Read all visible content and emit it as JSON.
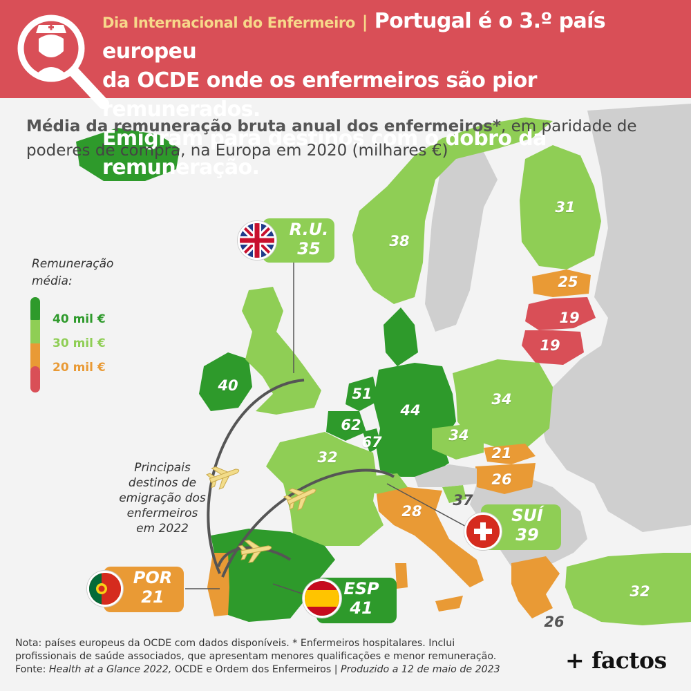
{
  "header": {
    "kicker": "Dia Internacional do Enfermeiro",
    "separator": "|",
    "headline_1": "Portugal é o 3.º país europeu",
    "headline_2": "da OCDE onde os enfermeiros são pior remunerados.",
    "headline_3": "Emigram para destinos com o dobro da remuneração.",
    "icon": "nurse-magnifier-icon"
  },
  "subtitle": {
    "bold": "Média da remuneração bruta anual dos enfermeiros*",
    "rest_1": ", em paridade de",
    "rest_2": "poderes de compra, na Europa em 2020 (milhares €)"
  },
  "legend": {
    "title_1": "Remuneração",
    "title_2": "média:",
    "items": [
      {
        "label": "40 mil €",
        "color": "#2e9a2b"
      },
      {
        "label": "30 mil €",
        "color": "#8fce55"
      },
      {
        "label": "20 mil €",
        "color": "#e99a35"
      },
      {
        "label": "",
        "color": "#d94f57"
      }
    ]
  },
  "countries": [
    {
      "name": "Iceland",
      "value": "",
      "color": "#2e9a2b"
    },
    {
      "name": "Norway",
      "value": "38",
      "color": "#8fce55"
    },
    {
      "name": "Finland",
      "value": "31",
      "color": "#8fce55"
    },
    {
      "name": "Estonia",
      "value": "25",
      "color": "#e99a35"
    },
    {
      "name": "Latvia",
      "value": "19",
      "color": "#d94f57"
    },
    {
      "name": "Lithuania",
      "value": "19",
      "color": "#d94f57"
    },
    {
      "name": "Ireland",
      "value": "40",
      "color": "#2e9a2b"
    },
    {
      "name": "United Kingdom",
      "value": "",
      "color": "#8fce55"
    },
    {
      "name": "Denmark",
      "value": "",
      "color": "#2e9a2b"
    },
    {
      "name": "Netherlands",
      "value": "51",
      "color": "#2e9a2b"
    },
    {
      "name": "Belgium",
      "value": "62",
      "color": "#2e9a2b"
    },
    {
      "name": "Luxembourg",
      "value": "67",
      "color": "#2e9a2b"
    },
    {
      "name": "Germany",
      "value": "44",
      "color": "#2e9a2b"
    },
    {
      "name": "Poland",
      "value": "34",
      "color": "#8fce55"
    },
    {
      "name": "Czechia",
      "value": "34",
      "color": "#8fce55"
    },
    {
      "name": "Slovakia",
      "value": "21",
      "color": "#e99a35"
    },
    {
      "name": "Hungary",
      "value": "26",
      "color": "#e99a35"
    },
    {
      "name": "Slovenia",
      "value": "37",
      "color": "#8fce55"
    },
    {
      "name": "France",
      "value": "32",
      "color": "#8fce55"
    },
    {
      "name": "Italy",
      "value": "28",
      "color": "#e99a35"
    },
    {
      "name": "Spain",
      "value": "",
      "color": "#2e9a2b"
    },
    {
      "name": "Portugal",
      "value": "",
      "color": "#e99a35"
    },
    {
      "name": "Greece",
      "value": "26",
      "color": "#e99a35"
    },
    {
      "name": "Turkey",
      "value": "32",
      "color": "#8fce55"
    },
    {
      "name": "Switzerland",
      "value": "",
      "color": "#8fce55"
    }
  ],
  "callouts": {
    "uk": {
      "code": "R.U.",
      "value": "35",
      "color": "#8fce55",
      "flag": "uk-flag-icon"
    },
    "por": {
      "code": "POR",
      "value": "21",
      "color": "#e99a35",
      "flag": "portugal-flag-icon"
    },
    "esp": {
      "code": "ESP",
      "value": "41",
      "color": "#2e9a2b",
      "flag": "spain-flag-icon"
    },
    "sui": {
      "code": "SUÍ",
      "value": "39",
      "color": "#8fce55",
      "flag": "switzerland-flag-icon"
    }
  },
  "emigration_note": {
    "line_1": "Principais",
    "line_2": "destinos de",
    "line_3": "emigração dos",
    "line_4": "enfermeiros",
    "line_5": "em 2022",
    "icon": "airplane-icon"
  },
  "footer": {
    "line_1": "Nota: países europeus da OCDE com dados disponíveis. * Enfermeiros hospitalares. Inclui",
    "line_2": "profissionais de saúde associados, que apresentam menores qualificações e menor remuneração.",
    "line_3a": "Fonte: ",
    "line_3b": "Health at a Glance 2022,",
    "line_3c": " OCDE e Ordem dos Enfermeiros | ",
    "line_3d": "Produzido a 12 de maio de 2023"
  },
  "brand": "+ factos",
  "colors": {
    "header_bg": "#d94f57",
    "kicker": "#f7d88a",
    "non_oecd": "#cfcfcf"
  }
}
